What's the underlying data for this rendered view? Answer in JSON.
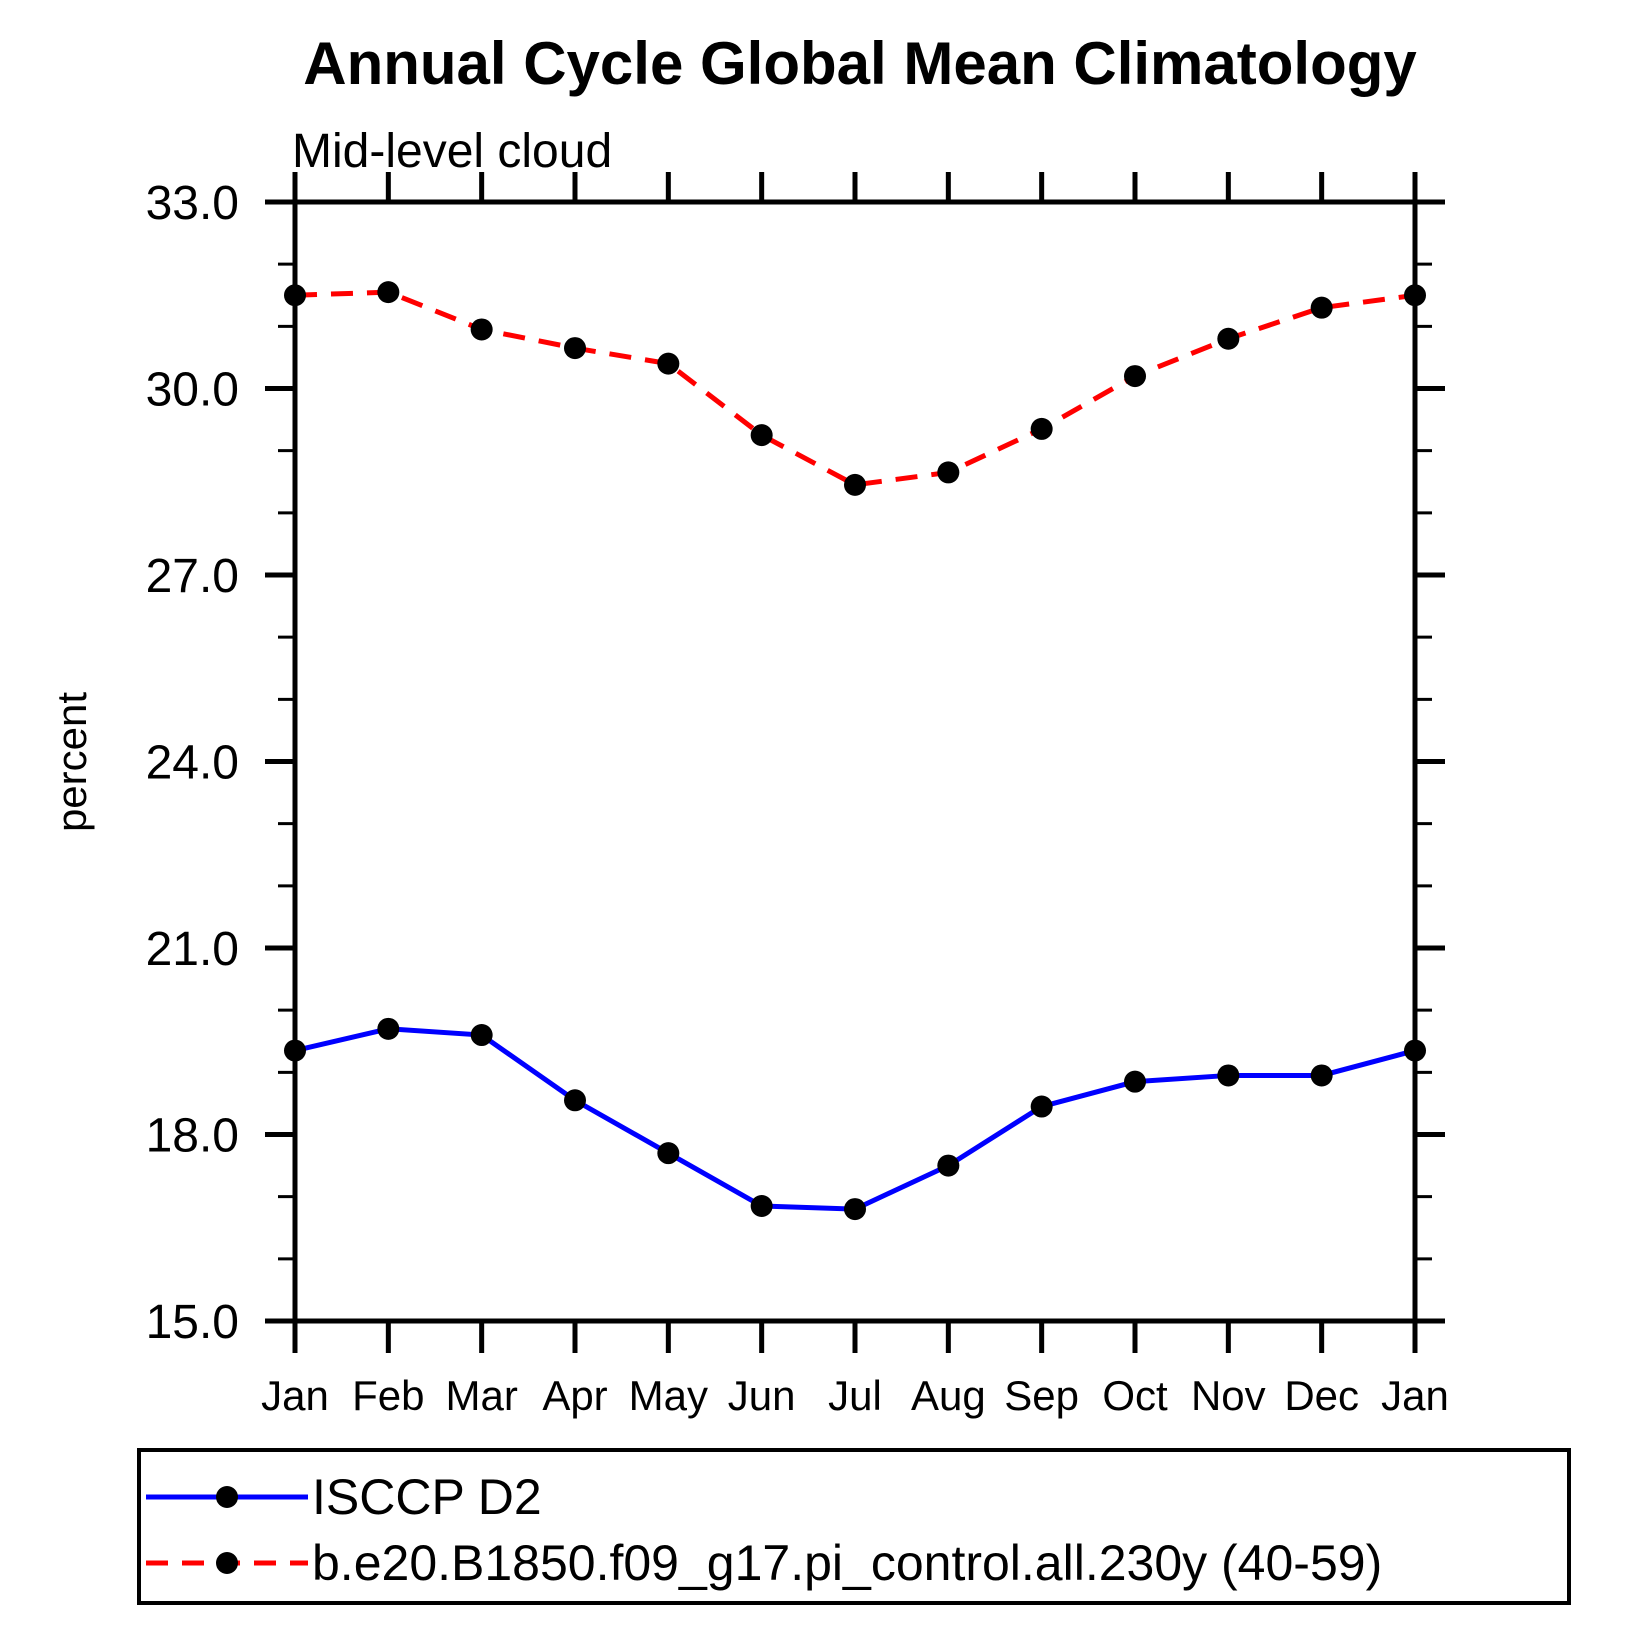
{
  "chart_data": {
    "type": "line",
    "title": "Annual Cycle Global Mean Climatology",
    "subtitle": "Mid-level cloud",
    "ylabel": "percent",
    "categories": [
      "Jan",
      "Feb",
      "Mar",
      "Apr",
      "May",
      "Jun",
      "Jul",
      "Aug",
      "Sep",
      "Oct",
      "Nov",
      "Dec",
      "Jan"
    ],
    "y_tick_labels": [
      "15.0",
      "18.0",
      "21.0",
      "24.0",
      "27.0",
      "30.0",
      "33.0"
    ],
    "ylim": [
      15.0,
      33.0
    ],
    "y_major_step": 3,
    "y_minor_step": 1,
    "grid": false,
    "legend_position": "bottom",
    "marker_color": "#000000",
    "axis_color": "#000000",
    "series": [
      {
        "name": "ISCCP D2",
        "color": "#0000ff",
        "line_style": "solid",
        "values": [
          19.35,
          19.7,
          19.6,
          18.55,
          17.7,
          16.85,
          16.8,
          17.5,
          18.45,
          18.85,
          18.95,
          18.95,
          19.35
        ]
      },
      {
        "name": "b.e20.B1850.f09_g17.pi_control.all.230y (40-59)",
        "color": "#ff0000",
        "line_style": "dashed",
        "values": [
          31.5,
          31.55,
          30.95,
          30.65,
          30.4,
          29.25,
          28.45,
          28.65,
          29.35,
          30.2,
          30.8,
          31.3,
          31.5
        ]
      }
    ]
  }
}
